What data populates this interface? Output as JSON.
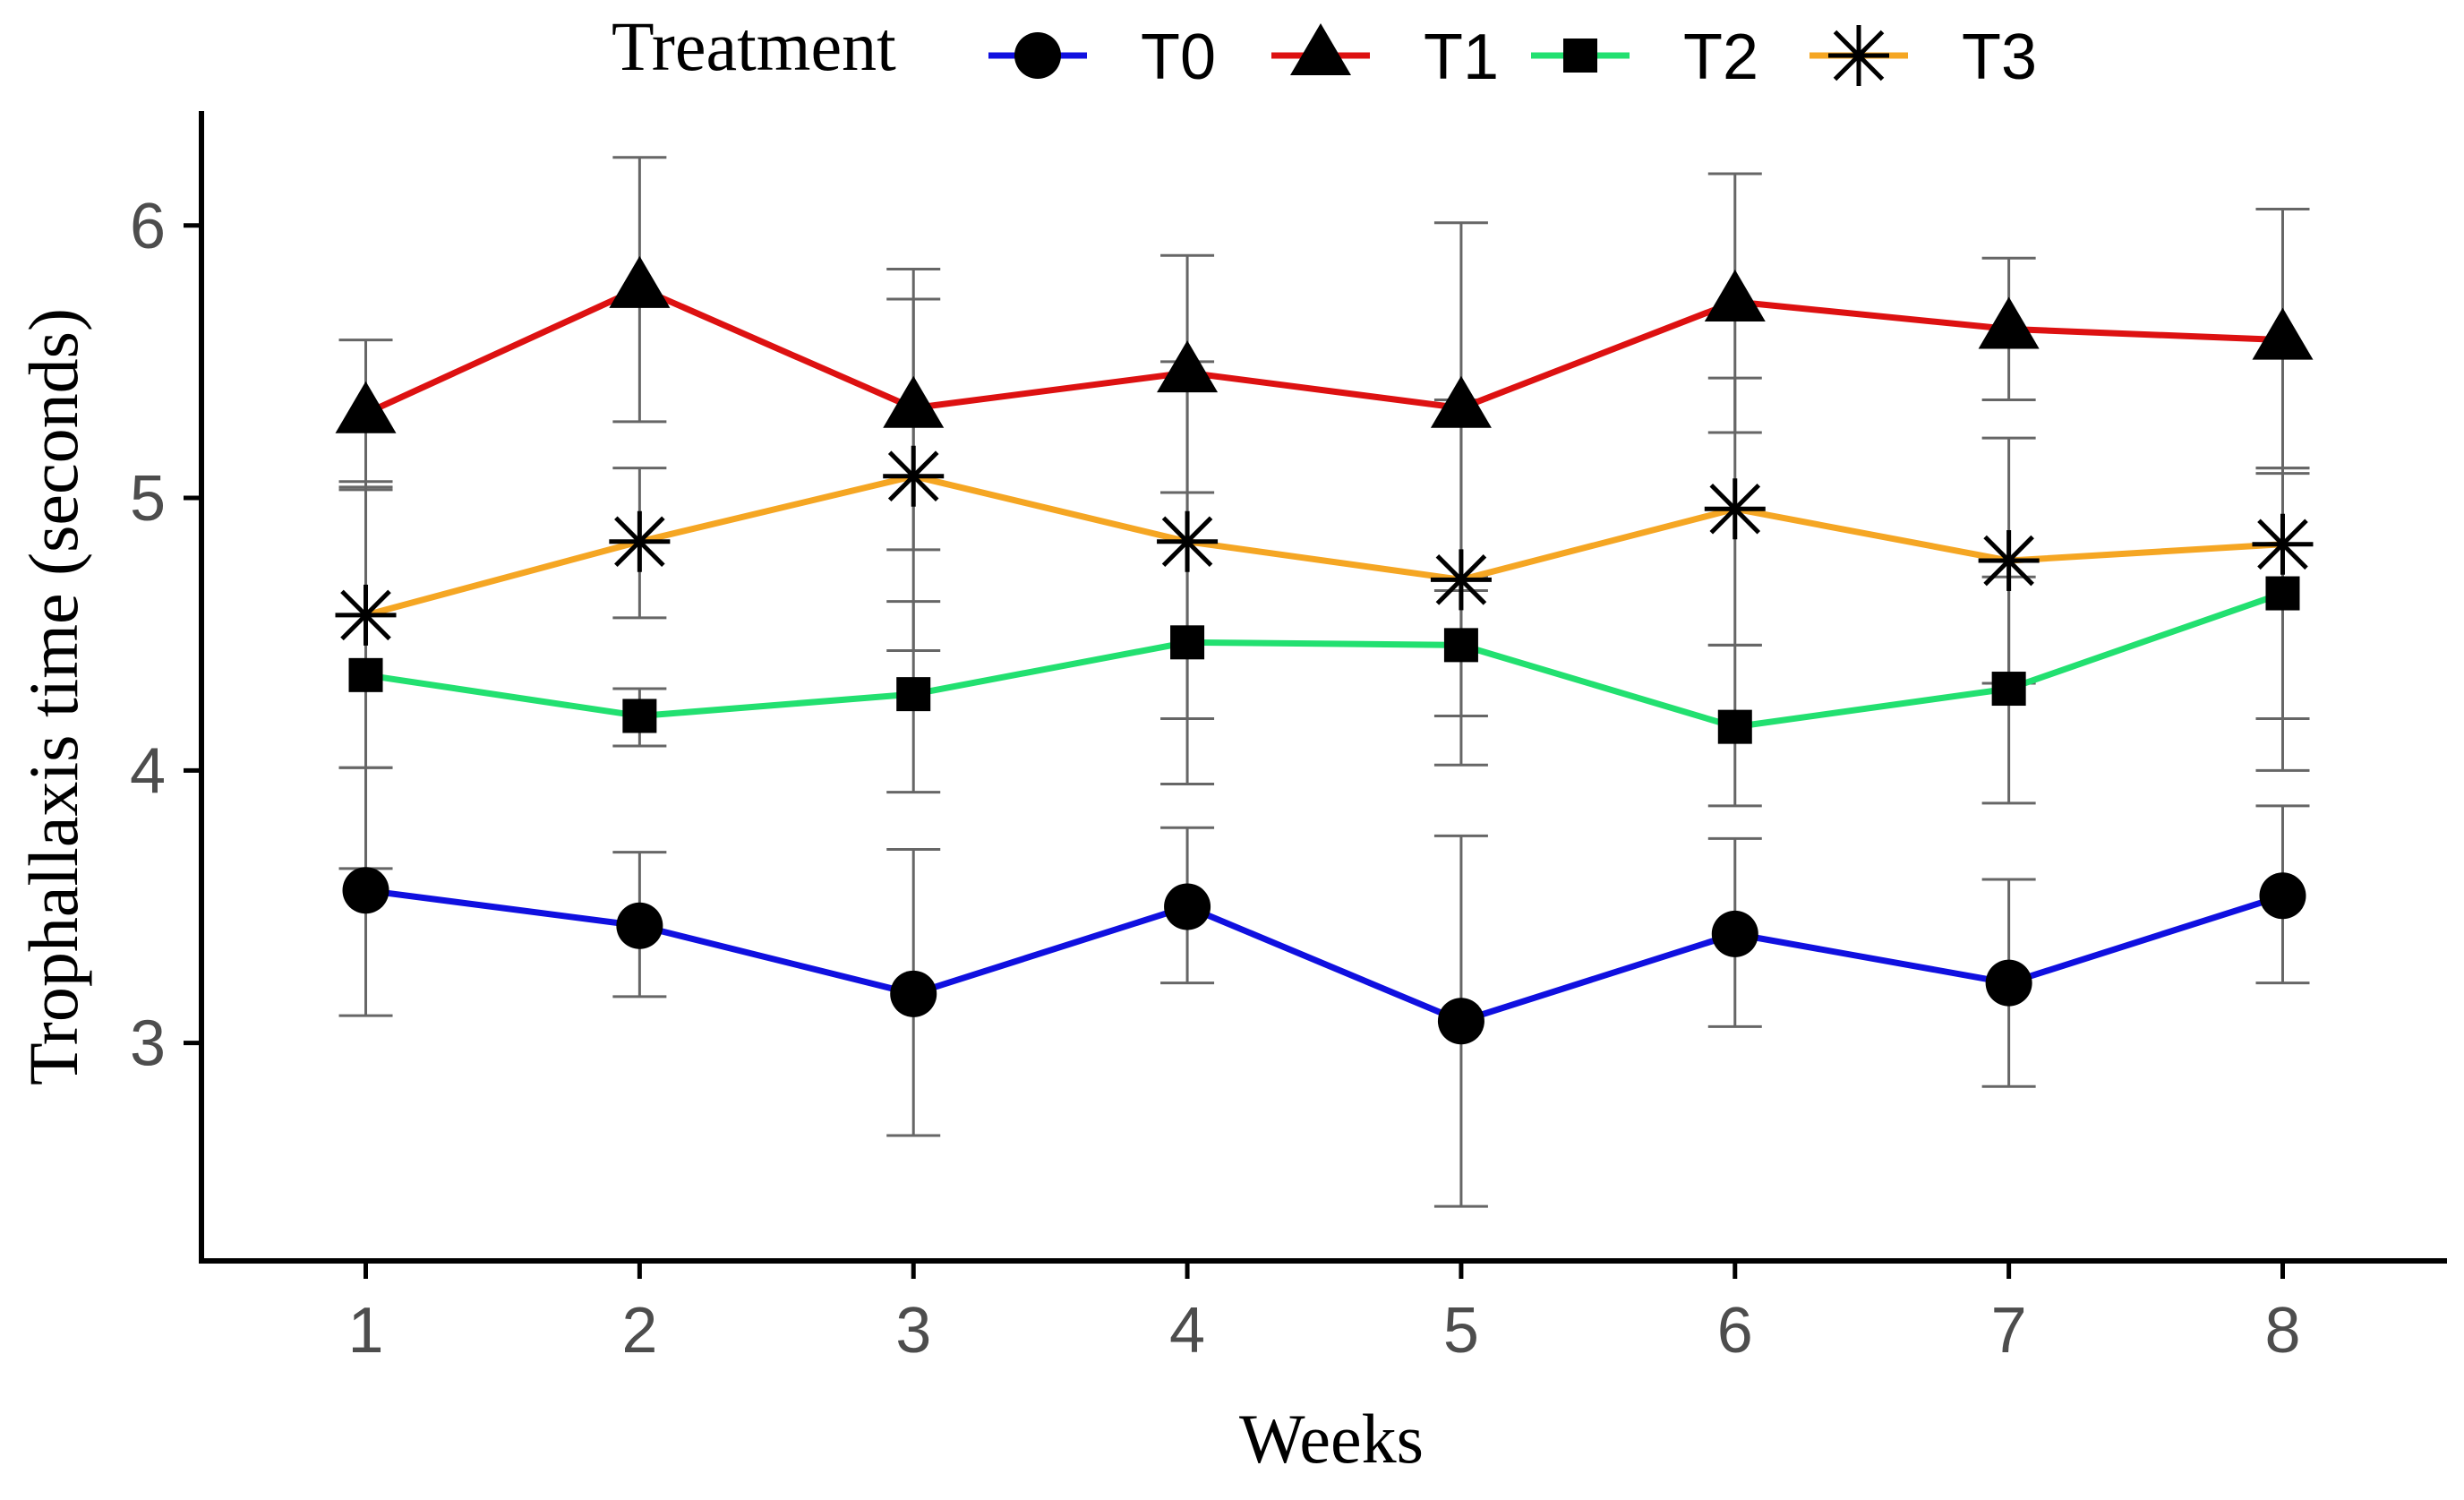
{
  "chart_data": {
    "type": "line",
    "title": "",
    "xlabel": "Weeks",
    "ylabel": "Trophallaxis time (seconds)",
    "x": [
      1,
      2,
      3,
      4,
      5,
      6,
      7,
      8
    ],
    "x_tick_labels": [
      "1",
      "2",
      "3",
      "4",
      "5",
      "6",
      "7",
      "8"
    ],
    "y_ticks": [
      3,
      4,
      5,
      6
    ],
    "y_tick_labels": [
      "3",
      "4",
      "5",
      "6"
    ],
    "xlim": [
      0.4,
      8.6
    ],
    "ylim": [
      2.2,
      6.42
    ],
    "grid": false,
    "legend": {
      "title": "Treatment",
      "position": "top"
    },
    "series": [
      {
        "name": "T0",
        "color": "#1010e0",
        "marker": "circle",
        "values": [
          3.56,
          3.43,
          3.18,
          3.5,
          3.08,
          3.4,
          3.22,
          3.54
        ],
        "err_low": [
          3.1,
          3.17,
          2.66,
          3.22,
          2.4,
          3.06,
          2.84,
          3.22
        ],
        "err_high": [
          4.01,
          3.7,
          3.71,
          3.79,
          3.76,
          3.75,
          3.6,
          3.87
        ]
      },
      {
        "name": "T1",
        "color": "#dd1111",
        "marker": "triangle",
        "values": [
          5.31,
          5.77,
          5.33,
          5.46,
          5.33,
          5.72,
          5.62,
          5.58
        ],
        "err_low": [
          5.04,
          5.28,
          4.81,
          5.02,
          4.66,
          5.24,
          5.36,
          5.11
        ],
        "err_high": [
          5.58,
          6.25,
          5.84,
          5.89,
          6.01,
          6.19,
          5.88,
          6.06
        ]
      },
      {
        "name": "T2",
        "color": "#22e070",
        "marker": "square",
        "values": [
          4.35,
          4.2,
          4.28,
          4.47,
          4.46,
          4.16,
          4.3,
          4.65
        ],
        "err_low": [
          3.64,
          4.09,
          3.92,
          3.95,
          4.02,
          3.87,
          3.88,
          4.19
        ],
        "err_high": [
          5.06,
          4.3,
          4.62,
          5.02,
          4.71,
          4.46,
          4.71,
          5.09
        ]
      },
      {
        "name": "T3",
        "color": "#f5a623",
        "marker": "asterisk",
        "values": [
          4.57,
          4.84,
          5.08,
          4.84,
          4.7,
          4.96,
          4.77,
          4.83
        ],
        "err_low": [
          4.01,
          4.56,
          4.44,
          4.19,
          4.2,
          4.46,
          4.32,
          4.0
        ],
        "err_high": [
          5.03,
          5.11,
          5.73,
          5.5,
          5.36,
          5.44,
          5.22,
          5.11
        ]
      }
    ]
  }
}
